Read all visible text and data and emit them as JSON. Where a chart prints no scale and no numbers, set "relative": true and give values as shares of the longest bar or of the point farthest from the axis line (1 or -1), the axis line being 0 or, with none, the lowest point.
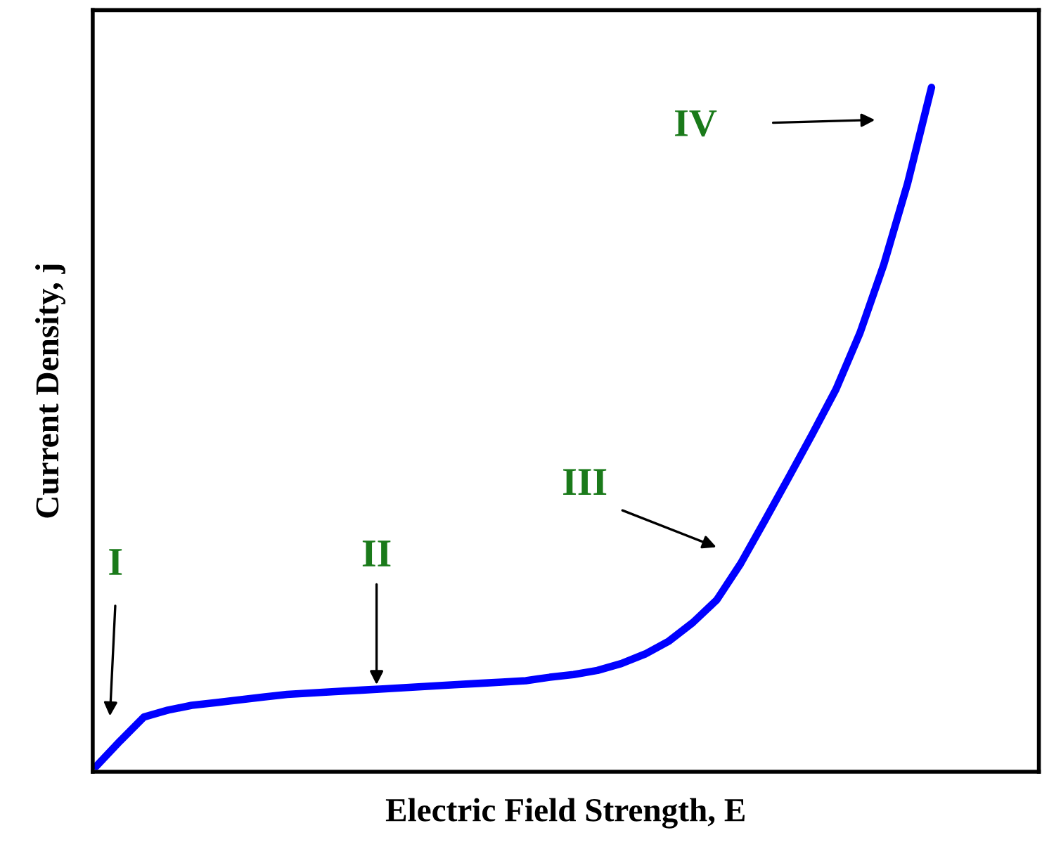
{
  "chart_data": {
    "type": "line",
    "relative": true,
    "xlabel": "Electric Field Strength, E",
    "ylabel": "Current Density, j",
    "categories": [
      null,
      null,
      null,
      null,
      null,
      null,
      null,
      null,
      null,
      null,
      null,
      null,
      null,
      null,
      null,
      null,
      null,
      null,
      null,
      null,
      null,
      null,
      null,
      null,
      null,
      null,
      null,
      null,
      null,
      null,
      null,
      null,
      null,
      null,
      null,
      null,
      null,
      null,
      null,
      null
    ],
    "series": [
      {
        "color": "#0000ff",
        "values": [
          0.008,
          0.045,
          0.08,
          0.09,
          0.097,
          0.101,
          0.105,
          0.109,
          0.113,
          0.115,
          0.117,
          0.119,
          0.121,
          0.123,
          0.125,
          0.127,
          0.129,
          0.131,
          0.133,
          0.138,
          0.142,
          0.148,
          0.158,
          0.172,
          0.191,
          0.218,
          0.251,
          0.304,
          0.366,
          0.429,
          0.493,
          0.559,
          0.641,
          0.741,
          0.86,
          1,
          null,
          null,
          null,
          null
        ]
      }
    ],
    "annotations": [
      "I",
      "II",
      "III",
      "IV"
    ],
    "marker": "none",
    "line_style": "solid",
    "grid": false,
    "legend": false
  }
}
